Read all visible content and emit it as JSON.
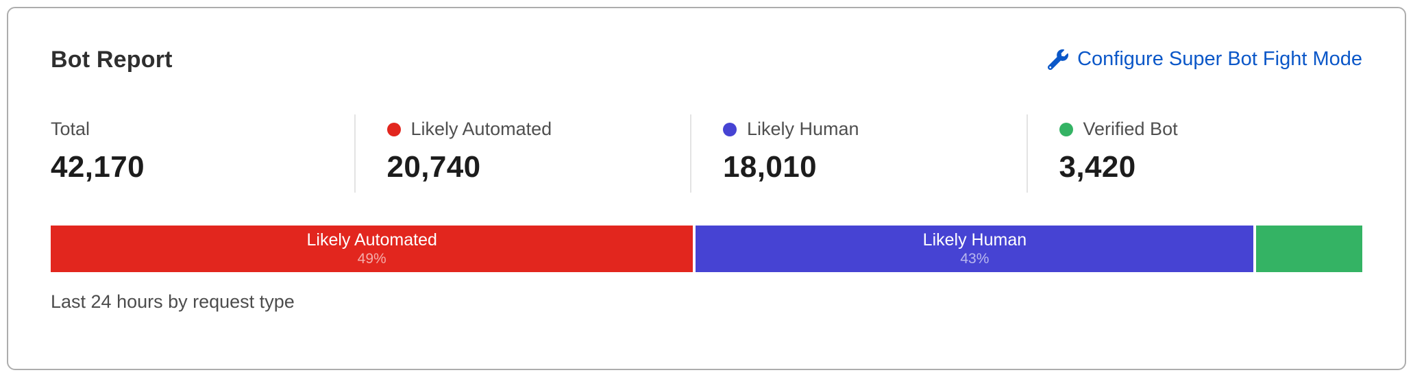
{
  "card": {
    "title": "Bot Report",
    "configure_link": {
      "label": "Configure Super Bot Fight Mode",
      "icon": "wrench-icon",
      "color": "#0b57c8"
    },
    "stats": [
      {
        "label": "Total",
        "value": "42,170",
        "dot_color": null
      },
      {
        "label": "Likely Automated",
        "value": "20,740",
        "dot_color": "#e2261e"
      },
      {
        "label": "Likely Human",
        "value": "18,010",
        "dot_color": "#4643d3"
      },
      {
        "label": "Verified Bot",
        "value": "3,420",
        "dot_color": "#34b364"
      }
    ],
    "caption": "Last 24 hours by request type"
  },
  "chart_data": {
    "type": "bar",
    "subtype": "horizontal-stacked-single-bar",
    "title": "Bot Report",
    "total": 42170,
    "categories": [
      "Likely Automated",
      "Likely Human",
      "Verified Bot"
    ],
    "values": [
      20740,
      18010,
      3420
    ],
    "segments": [
      {
        "name": "Likely Automated",
        "value": 20740,
        "pct_label": "49%",
        "width_pct": 49.18,
        "color": "#e2261e",
        "show_label": true
      },
      {
        "name": "Likely Human",
        "value": 18010,
        "pct_label": "43%",
        "width_pct": 42.71,
        "color": "#4643d3",
        "show_label": true
      },
      {
        "name": "Verified Bot",
        "value": 3420,
        "pct_label": "",
        "width_pct": 8.11,
        "color": "#34b364",
        "show_label": false
      }
    ],
    "caption": "Last 24 hours by request type",
    "legend_position": "top-stats-row",
    "grid": false
  }
}
